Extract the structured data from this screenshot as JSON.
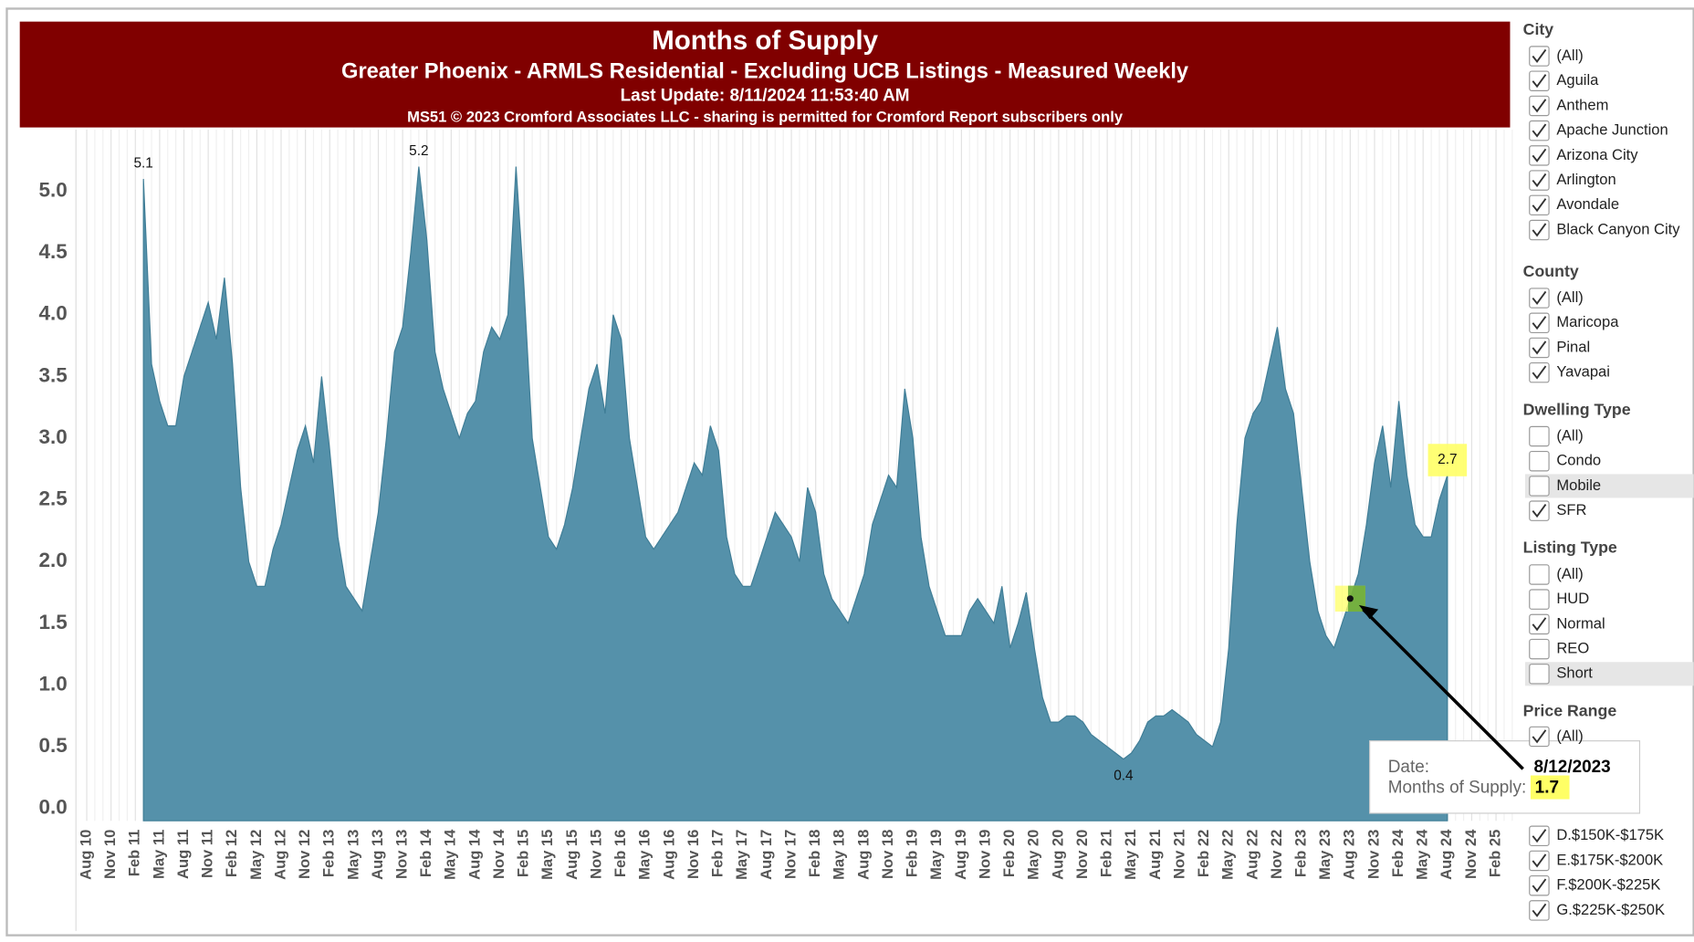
{
  "header": {
    "title": "Months of Supply",
    "subtitle": "Greater Phoenix - ARMLS Residential - Excluding UCB Listings - Measured Weekly",
    "update": "Last Update: 8/11/2024 11:53:40 AM",
    "copyright": "MS51 © 2023 Cromford Associates LLC - sharing is permitted for Cromford Report subscribers only"
  },
  "chart_data": {
    "type": "area",
    "color": "#5591aa",
    "grid": true,
    "xlim": [
      "2010-07",
      "2025-04"
    ],
    "ylim": [
      -0.1,
      5.5
    ],
    "yticks": [
      {
        "value": 0,
        "label": "0.0"
      },
      {
        "value": 0.5,
        "label": "0.5"
      },
      {
        "value": 1,
        "label": "1.0"
      },
      {
        "value": 1.5,
        "label": "1.5"
      },
      {
        "value": 2,
        "label": "2.0"
      },
      {
        "value": 2.5,
        "label": "2.5"
      },
      {
        "value": 3,
        "label": "3.0"
      },
      {
        "value": 3.5,
        "label": "3.5"
      },
      {
        "value": 4,
        "label": "4.0"
      },
      {
        "value": 4.5,
        "label": "4.5"
      },
      {
        "value": 5,
        "label": "5.0"
      }
    ],
    "xticks": [
      {
        "value": "2010-08",
        "label": "Aug 10"
      },
      {
        "value": "2010-11",
        "label": "Nov 10"
      },
      {
        "value": "2011-02",
        "label": "Feb 11"
      },
      {
        "value": "2011-05",
        "label": "May 11"
      },
      {
        "value": "2011-08",
        "label": "Aug 11"
      },
      {
        "value": "2011-11",
        "label": "Nov 11"
      },
      {
        "value": "2012-02",
        "label": "Feb 12"
      },
      {
        "value": "2012-05",
        "label": "May 12"
      },
      {
        "value": "2012-08",
        "label": "Aug 12"
      },
      {
        "value": "2012-11",
        "label": "Nov 12"
      },
      {
        "value": "2013-02",
        "label": "Feb 13"
      },
      {
        "value": "2013-05",
        "label": "May 13"
      },
      {
        "value": "2013-08",
        "label": "Aug 13"
      },
      {
        "value": "2013-11",
        "label": "Nov 13"
      },
      {
        "value": "2014-02",
        "label": "Feb 14"
      },
      {
        "value": "2014-05",
        "label": "May 14"
      },
      {
        "value": "2014-08",
        "label": "Aug 14"
      },
      {
        "value": "2014-11",
        "label": "Nov 14"
      },
      {
        "value": "2015-02",
        "label": "Feb 15"
      },
      {
        "value": "2015-05",
        "label": "May 15"
      },
      {
        "value": "2015-08",
        "label": "Aug 15"
      },
      {
        "value": "2015-11",
        "label": "Nov 15"
      },
      {
        "value": "2016-02",
        "label": "Feb 16"
      },
      {
        "value": "2016-05",
        "label": "May 16"
      },
      {
        "value": "2016-08",
        "label": "Aug 16"
      },
      {
        "value": "2016-11",
        "label": "Nov 16"
      },
      {
        "value": "2017-02",
        "label": "Feb 17"
      },
      {
        "value": "2017-05",
        "label": "May 17"
      },
      {
        "value": "2017-08",
        "label": "Aug 17"
      },
      {
        "value": "2017-11",
        "label": "Nov 17"
      },
      {
        "value": "2018-02",
        "label": "Feb 18"
      },
      {
        "value": "2018-05",
        "label": "May 18"
      },
      {
        "value": "2018-08",
        "label": "Aug 18"
      },
      {
        "value": "2018-11",
        "label": "Nov 18"
      },
      {
        "value": "2019-02",
        "label": "Feb 19"
      },
      {
        "value": "2019-05",
        "label": "May 19"
      },
      {
        "value": "2019-08",
        "label": "Aug 19"
      },
      {
        "value": "2019-11",
        "label": "Nov 19"
      },
      {
        "value": "2020-02",
        "label": "Feb 20"
      },
      {
        "value": "2020-05",
        "label": "May 20"
      },
      {
        "value": "2020-08",
        "label": "Aug 20"
      },
      {
        "value": "2020-11",
        "label": "Nov 20"
      },
      {
        "value": "2021-02",
        "label": "Feb 21"
      },
      {
        "value": "2021-05",
        "label": "May 21"
      },
      {
        "value": "2021-08",
        "label": "Aug 21"
      },
      {
        "value": "2021-11",
        "label": "Nov 21"
      },
      {
        "value": "2022-02",
        "label": "Feb 22"
      },
      {
        "value": "2022-05",
        "label": "May 22"
      },
      {
        "value": "2022-08",
        "label": "Aug 22"
      },
      {
        "value": "2022-11",
        "label": "Nov 22"
      },
      {
        "value": "2023-02",
        "label": "Feb 23"
      },
      {
        "value": "2023-05",
        "label": "May 23"
      },
      {
        "value": "2023-08",
        "label": "Aug 23"
      },
      {
        "value": "2023-11",
        "label": "Nov 23"
      },
      {
        "value": "2024-02",
        "label": "Feb 24"
      },
      {
        "value": "2024-05",
        "label": "May 24"
      },
      {
        "value": "2024-08",
        "label": "Aug 24"
      },
      {
        "value": "2024-11",
        "label": "Nov 24"
      },
      {
        "value": "2025-02",
        "label": "Feb 25"
      }
    ],
    "x": [
      "2011-03",
      "2011-04",
      "2011-05",
      "2011-06",
      "2011-07",
      "2011-08",
      "2011-09",
      "2011-10",
      "2011-11",
      "2011-12",
      "2012-01",
      "2012-02",
      "2012-03",
      "2012-04",
      "2012-05",
      "2012-06",
      "2012-07",
      "2012-08",
      "2012-09",
      "2012-10",
      "2012-11",
      "2012-12",
      "2013-01",
      "2013-02",
      "2013-03",
      "2013-04",
      "2013-05",
      "2013-06",
      "2013-07",
      "2013-08",
      "2013-09",
      "2013-10",
      "2013-11",
      "2013-12",
      "2014-01",
      "2014-02",
      "2014-03",
      "2014-04",
      "2014-05",
      "2014-06",
      "2014-07",
      "2014-08",
      "2014-09",
      "2014-10",
      "2014-11",
      "2014-12",
      "2015-01",
      "2015-02",
      "2015-03",
      "2015-04",
      "2015-05",
      "2015-06",
      "2015-07",
      "2015-08",
      "2015-09",
      "2015-10",
      "2015-11",
      "2015-12",
      "2016-01",
      "2016-02",
      "2016-03",
      "2016-04",
      "2016-05",
      "2016-06",
      "2016-07",
      "2016-08",
      "2016-09",
      "2016-10",
      "2016-11",
      "2016-12",
      "2017-01",
      "2017-02",
      "2017-03",
      "2017-04",
      "2017-05",
      "2017-06",
      "2017-07",
      "2017-08",
      "2017-09",
      "2017-10",
      "2017-11",
      "2017-12",
      "2018-01",
      "2018-02",
      "2018-03",
      "2018-04",
      "2018-05",
      "2018-06",
      "2018-07",
      "2018-08",
      "2018-09",
      "2018-10",
      "2018-11",
      "2018-12",
      "2019-01",
      "2019-02",
      "2019-03",
      "2019-04",
      "2019-05",
      "2019-06",
      "2019-07",
      "2019-08",
      "2019-09",
      "2019-10",
      "2019-11",
      "2019-12",
      "2020-01",
      "2020-02",
      "2020-03",
      "2020-04",
      "2020-05",
      "2020-06",
      "2020-07",
      "2020-08",
      "2020-09",
      "2020-10",
      "2020-11",
      "2020-12",
      "2021-01",
      "2021-02",
      "2021-03",
      "2021-04",
      "2021-05",
      "2021-06",
      "2021-07",
      "2021-08",
      "2021-09",
      "2021-10",
      "2021-11",
      "2021-12",
      "2022-01",
      "2022-02",
      "2022-03",
      "2022-04",
      "2022-05",
      "2022-06",
      "2022-07",
      "2022-08",
      "2022-09",
      "2022-10",
      "2022-11",
      "2022-12",
      "2023-01",
      "2023-02",
      "2023-03",
      "2023-04",
      "2023-05",
      "2023-06",
      "2023-07",
      "2023-08",
      "2023-09",
      "2023-10",
      "2023-11",
      "2023-12",
      "2024-01",
      "2024-02",
      "2024-03",
      "2024-04",
      "2024-05",
      "2024-06",
      "2024-07",
      "2024-08"
    ],
    "values": [
      5.1,
      3.6,
      3.3,
      3.1,
      3.1,
      3.5,
      3.7,
      3.9,
      4.1,
      3.8,
      4.3,
      3.6,
      2.6,
      2.0,
      1.8,
      1.8,
      2.1,
      2.3,
      2.6,
      2.9,
      3.1,
      2.8,
      3.5,
      2.9,
      2.2,
      1.8,
      1.7,
      1.6,
      2.0,
      2.4,
      3.0,
      3.7,
      3.9,
      4.5,
      5.2,
      4.6,
      3.7,
      3.4,
      3.2,
      3.0,
      3.2,
      3.3,
      3.7,
      3.9,
      3.8,
      4.0,
      5.2,
      4.2,
      3.0,
      2.6,
      2.2,
      2.1,
      2.3,
      2.6,
      3.0,
      3.4,
      3.6,
      3.2,
      4.0,
      3.8,
      3.0,
      2.6,
      2.2,
      2.1,
      2.2,
      2.3,
      2.4,
      2.6,
      2.8,
      2.7,
      3.1,
      2.9,
      2.2,
      1.9,
      1.8,
      1.8,
      2.0,
      2.2,
      2.4,
      2.3,
      2.2,
      2.0,
      2.6,
      2.4,
      1.9,
      1.7,
      1.6,
      1.5,
      1.7,
      1.9,
      2.3,
      2.5,
      2.7,
      2.6,
      3.4,
      3.0,
      2.2,
      1.8,
      1.6,
      1.4,
      1.4,
      1.4,
      1.6,
      1.7,
      1.6,
      1.5,
      1.8,
      1.3,
      1.5,
      1.75,
      1.3,
      0.9,
      0.7,
      0.7,
      0.75,
      0.75,
      0.7,
      0.6,
      0.55,
      0.5,
      0.45,
      0.4,
      0.45,
      0.55,
      0.7,
      0.75,
      0.75,
      0.8,
      0.75,
      0.7,
      0.6,
      0.55,
      0.5,
      0.7,
      1.3,
      2.3,
      3.0,
      3.2,
      3.3,
      3.6,
      3.9,
      3.4,
      3.2,
      2.6,
      2.0,
      1.6,
      1.4,
      1.3,
      1.5,
      1.7,
      1.9,
      2.3,
      2.8,
      3.1,
      2.6,
      3.3,
      2.7,
      2.3,
      2.2,
      2.2,
      2.5,
      2.7
    ],
    "annotations": [
      {
        "x": "2011-03",
        "text": "5.1",
        "place": "above"
      },
      {
        "x": "2014-01",
        "text": "5.2",
        "place": "above"
      },
      {
        "x": "2021-04",
        "text": "0.4",
        "place": "below"
      },
      {
        "x": "2024-08",
        "text": "2.7",
        "place": "above",
        "highlight": true
      }
    ],
    "tooltip": {
      "x": "2023-08",
      "date_label": "Date:",
      "date": "8/12/2023",
      "value_label": "Months of Supply:",
      "value": "1.7"
    }
  },
  "filters": [
    {
      "title": "City",
      "items": [
        {
          "label": "(All)",
          "checked": true
        },
        {
          "label": "Aguila",
          "checked": true
        },
        {
          "label": "Anthem",
          "checked": true
        },
        {
          "label": "Apache Junction",
          "checked": true
        },
        {
          "label": "Arizona City",
          "checked": true
        },
        {
          "label": "Arlington",
          "checked": true
        },
        {
          "label": "Avondale",
          "checked": true
        },
        {
          "label": "Black Canyon City",
          "checked": true
        }
      ]
    },
    {
      "title": "County",
      "items": [
        {
          "label": "(All)",
          "checked": true
        },
        {
          "label": "Maricopa",
          "checked": true
        },
        {
          "label": "Pinal",
          "checked": true
        },
        {
          "label": "Yavapai",
          "checked": true
        }
      ]
    },
    {
      "title": "Dwelling Type",
      "items": [
        {
          "label": "(All)",
          "checked": false
        },
        {
          "label": "Condo",
          "checked": false
        },
        {
          "label": "Mobile",
          "checked": false
        },
        {
          "label": "SFR",
          "checked": true
        }
      ]
    },
    {
      "title": "Listing Type",
      "items": [
        {
          "label": "(All)",
          "checked": false
        },
        {
          "label": "HUD",
          "checked": false
        },
        {
          "label": "Normal",
          "checked": true
        },
        {
          "label": "REO",
          "checked": false
        },
        {
          "label": "Short",
          "checked": false
        }
      ]
    },
    {
      "title": "Price Range",
      "items": [
        {
          "label": "(All)",
          "checked": true
        },
        {
          "label": "D.$150K-$175K",
          "checked": true
        },
        {
          "label": "E.$175K-$200K",
          "checked": true
        },
        {
          "label": "F.$200K-$225K",
          "checked": true
        },
        {
          "label": "G.$225K-$250K",
          "checked": true
        }
      ]
    }
  ]
}
